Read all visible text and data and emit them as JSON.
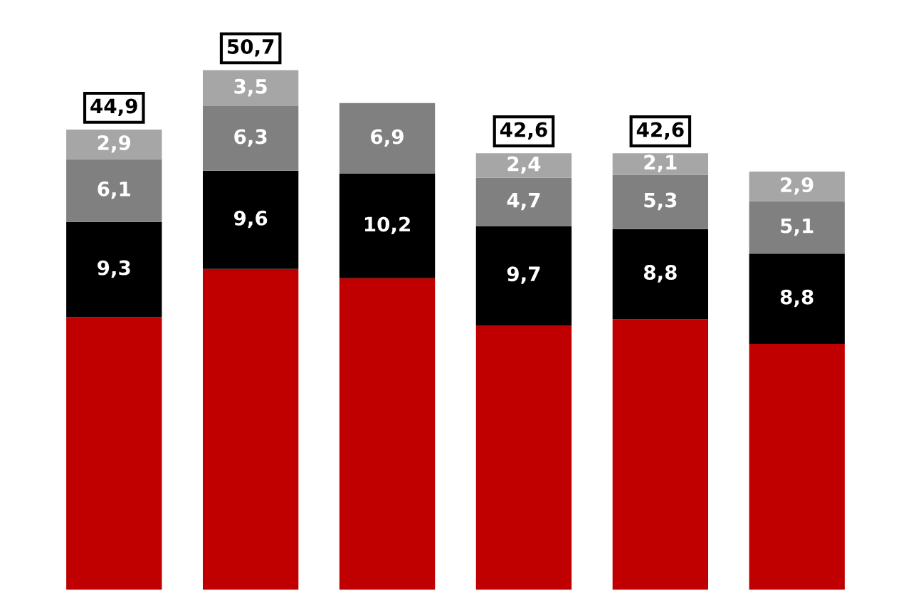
{
  "chart_data": {
    "type": "bar",
    "stacked": true,
    "categories": [
      null,
      null,
      null,
      null,
      null,
      null
    ],
    "series": [
      {
        "color": "#c00000",
        "values": [
          26.6,
          31.3,
          30.4,
          25.8,
          26.4,
          24.0
        ],
        "value_labels": [
          null,
          null,
          null,
          null,
          null,
          null
        ]
      },
      {
        "color": "#000000",
        "values": [
          9.3,
          9.6,
          10.2,
          9.7,
          8.8,
          8.8
        ],
        "value_labels": [
          "9,3",
          "9,6",
          "10,2",
          "9,7",
          "8,8",
          "8,8"
        ]
      },
      {
        "color": "#808080",
        "values": [
          6.1,
          6.3,
          6.9,
          4.7,
          5.3,
          5.1
        ],
        "value_labels": [
          "6,1",
          "6,3",
          "6,9",
          "4,7",
          "5,3",
          "5,1"
        ]
      },
      {
        "color": "#a6a6a6",
        "values": [
          2.9,
          3.5,
          null,
          2.4,
          2.1,
          2.9
        ],
        "value_labels": [
          "2,9",
          "3,5",
          null,
          "2,4",
          "2,1",
          "2,9"
        ]
      }
    ],
    "totals": [
      "44,9",
      "50,7",
      null,
      "42,6",
      "42,6",
      null
    ],
    "grid": false,
    "legend": false
  }
}
